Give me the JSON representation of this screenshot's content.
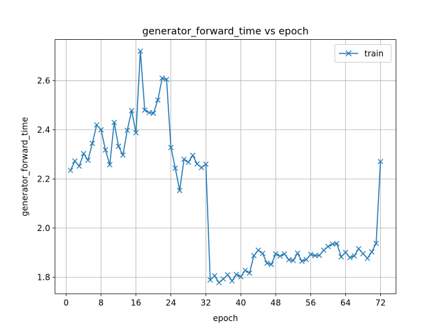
{
  "chart_data": {
    "type": "line",
    "title": "generator_forward_time vs epoch",
    "xlabel": "epoch",
    "ylabel": "generator_forward_time",
    "xlim": [
      -2.55,
      75.55
    ],
    "ylim": [
      1.733,
      2.767
    ],
    "xticks": [
      0,
      8,
      16,
      24,
      32,
      40,
      48,
      56,
      64,
      72
    ],
    "yticks": [
      1.8,
      2.0,
      2.2,
      2.4,
      2.6
    ],
    "ytick_labels": [
      "1.8",
      "2.0",
      "2.2",
      "2.4",
      "2.6"
    ],
    "grid": true,
    "legend_position": "top-right",
    "series": [
      {
        "name": "train",
        "color": "#1f77b4",
        "marker": "x",
        "x": [
          1,
          2,
          3,
          4,
          5,
          6,
          7,
          8,
          9,
          10,
          11,
          12,
          13,
          14,
          15,
          16,
          17,
          18,
          19,
          20,
          21,
          22,
          23,
          24,
          25,
          26,
          27,
          28,
          29,
          30,
          31,
          32,
          33,
          34,
          35,
          36,
          37,
          38,
          39,
          40,
          41,
          42,
          43,
          44,
          45,
          46,
          47,
          48,
          49,
          50,
          51,
          52,
          53,
          54,
          55,
          56,
          57,
          58,
          59,
          60,
          61,
          62,
          63,
          64,
          65,
          66,
          67,
          68,
          69,
          70,
          71,
          72
        ],
        "y": [
          2.235,
          2.273,
          2.252,
          2.303,
          2.276,
          2.345,
          2.42,
          2.4,
          2.318,
          2.258,
          2.43,
          2.333,
          2.297,
          2.398,
          2.478,
          2.388,
          2.72,
          2.48,
          2.47,
          2.467,
          2.521,
          2.61,
          2.605,
          2.328,
          2.244,
          2.153,
          2.28,
          2.268,
          2.296,
          2.261,
          2.246,
          2.26,
          1.789,
          1.806,
          1.778,
          1.793,
          1.81,
          1.785,
          1.811,
          1.802,
          1.828,
          1.817,
          1.888,
          1.91,
          1.897,
          1.857,
          1.852,
          1.895,
          1.886,
          1.895,
          1.871,
          1.868,
          1.898,
          1.865,
          1.872,
          1.893,
          1.888,
          1.889,
          1.91,
          1.925,
          1.935,
          1.937,
          1.883,
          1.901,
          1.88,
          1.887,
          1.916,
          1.896,
          1.877,
          1.903,
          1.938,
          2.271
        ]
      }
    ]
  }
}
